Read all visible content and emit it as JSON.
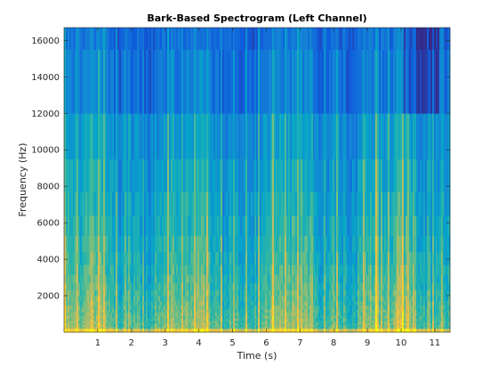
{
  "chart_data": {
    "type": "heatmap",
    "title": "Bark-Based Spectrogram (Left Channel)",
    "xlabel": "Time (s)",
    "ylabel": "Frequency (Hz)",
    "xlim": [
      0,
      11.45
    ],
    "ylim": [
      0,
      16700
    ],
    "x_ticks": [
      1,
      2,
      3,
      4,
      5,
      6,
      7,
      8,
      9,
      10,
      11
    ],
    "y_ticks": [
      2000,
      4000,
      6000,
      8000,
      10000,
      12000,
      14000,
      16000
    ],
    "bark_band_edges_hz": [
      0,
      100,
      200,
      300,
      400,
      510,
      630,
      770,
      920,
      1080,
      1270,
      1480,
      1720,
      2000,
      2320,
      2700,
      3150,
      3700,
      4400,
      5300,
      6400,
      7700,
      9500,
      12000,
      15500,
      16700
    ],
    "colormap": "parula",
    "colormap_stops": [
      "#352a87",
      "#0f5cdd",
      "#1481d6",
      "#06a4ca",
      "#2eb7a4",
      "#87bf77",
      "#d1bb59",
      "#fec832",
      "#f9fb0e"
    ],
    "grid": false,
    "legend": "none"
  }
}
